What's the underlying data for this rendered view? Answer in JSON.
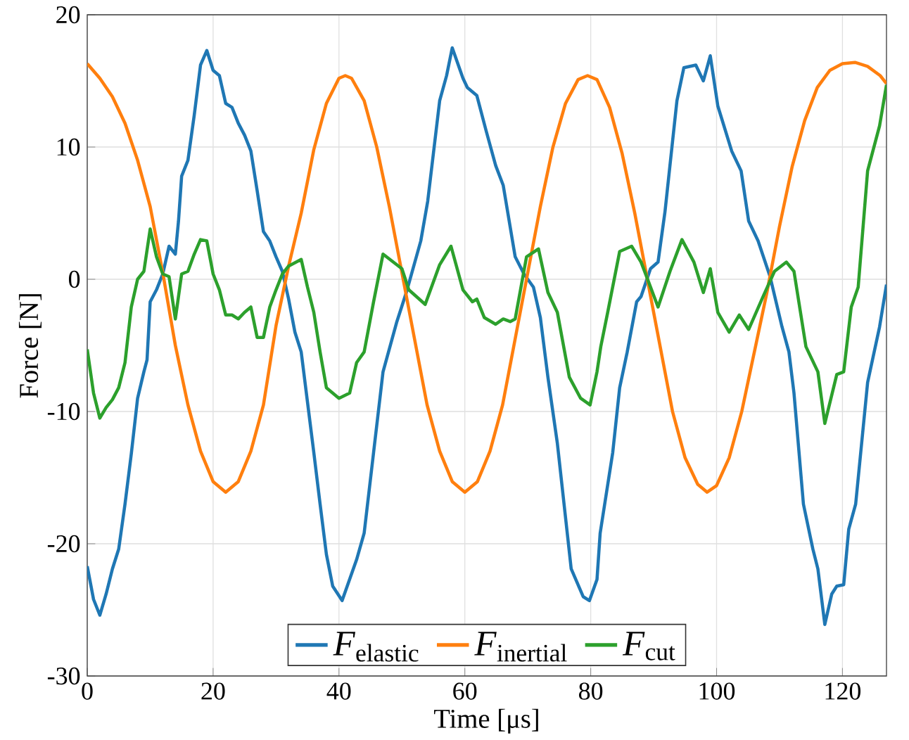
{
  "chart_data": {
    "type": "line",
    "xlabel": "Time [μs]",
    "ylabel": "Force [N]",
    "xlim": [
      0,
      127
    ],
    "ylim": [
      -30,
      20
    ],
    "xticks": [
      0,
      20,
      40,
      60,
      80,
      100,
      120
    ],
    "yticks": [
      -30,
      -20,
      -10,
      0,
      10,
      20
    ],
    "grid": true,
    "legend": "bottom",
    "series": [
      {
        "name": "*F*$_{elastic}$",
        "color": "#1f77b4",
        "x": [
          0,
          1,
          2,
          3,
          4,
          5,
          6,
          7,
          8,
          9,
          9.5,
          10,
          11,
          12,
          13,
          14,
          14.5,
          15,
          16,
          17,
          18,
          19,
          20,
          21,
          22,
          23,
          24,
          25,
          26,
          27,
          28,
          29,
          30,
          31,
          32,
          33,
          34,
          35,
          36,
          37,
          38,
          39,
          40.5,
          42.8,
          44,
          45.5,
          47,
          49.2,
          50.7,
          53,
          54.1,
          56,
          57.1,
          58,
          59.7,
          60.4,
          61.9,
          63.4,
          64.9,
          66.1,
          68,
          69.4,
          70.9,
          72,
          73.2,
          74.7,
          76.9,
          78.8,
          79.8,
          81,
          81.5,
          83.5,
          84.6,
          85.8,
          87.3,
          88,
          89.5,
          90.7,
          91.8,
          93.7,
          94.8,
          96.7,
          97.9,
          99,
          100.2,
          102.4,
          103.9,
          105.1,
          106.6,
          108.5,
          110.4,
          111.5,
          112.3,
          113.8,
          115.3,
          116.1,
          117.2,
          118.3,
          119.1,
          120.2,
          121,
          122.1,
          124,
          125.9,
          127
        ],
        "values": [
          -21.7,
          -24.2,
          -25.4,
          -23.8,
          -21.9,
          -20.4,
          -17,
          -13.2,
          -9,
          -7,
          -6.1,
          -1.7,
          -0.8,
          0.4,
          2.5,
          1.9,
          4.4,
          7.8,
          9,
          12.4,
          16.2,
          17.3,
          15.8,
          15.4,
          13.3,
          13,
          11.8,
          10.9,
          9.7,
          6.7,
          3.6,
          2.9,
          1.7,
          0.6,
          -1.5,
          -4,
          -5.5,
          -9.3,
          -13.1,
          -17,
          -20.8,
          -23.2,
          -24.3,
          -21.2,
          -19.2,
          -13.1,
          -7,
          -3.2,
          -1,
          2.9,
          5.9,
          13.5,
          15.4,
          17.5,
          15.2,
          14.5,
          13.9,
          11.2,
          8.6,
          7.1,
          1.7,
          0.4,
          -0.6,
          -2.9,
          -7.4,
          -12.4,
          -21.9,
          -24,
          -24.3,
          -22.7,
          -19.2,
          -13.1,
          -8.2,
          -5.5,
          -1.7,
          -1.3,
          0.8,
          1.3,
          5.1,
          13.5,
          16,
          16.2,
          15,
          16.9,
          13.1,
          9.7,
          8.2,
          4.4,
          2.9,
          0.2,
          -3.6,
          -5.5,
          -8.6,
          -17,
          -20.4,
          -21.9,
          -26.1,
          -23.8,
          -23.2,
          -23.1,
          -18.9,
          -17,
          -7.8,
          -3.6,
          -0.4
        ]
      },
      {
        "name": "*F*$_{inertial}$",
        "color": "#ff7f0e",
        "x": [
          0,
          2,
          4,
          6,
          8,
          10,
          12,
          14,
          16,
          18,
          20,
          22,
          24,
          26,
          28,
          30,
          32,
          34,
          36,
          38,
          40,
          41,
          42,
          44,
          46,
          48,
          50,
          52,
          54,
          56,
          58,
          60,
          62,
          64,
          66,
          68,
          70,
          72,
          74,
          76,
          78,
          79.5,
          81,
          83,
          85,
          87,
          89,
          91,
          93,
          95,
          97,
          98.5,
          100,
          102,
          104,
          106,
          108,
          110,
          112,
          114,
          116,
          118,
          120,
          122,
          124,
          126,
          127
        ],
        "values": [
          16.3,
          15.2,
          13.8,
          11.8,
          9,
          5.5,
          0.5,
          -5,
          -9.5,
          -13,
          -15.3,
          -16.1,
          -15.3,
          -13,
          -9.5,
          -3.5,
          1,
          5,
          9.8,
          13.3,
          15.2,
          15.4,
          15.2,
          13.5,
          10,
          5.5,
          0.5,
          -4.5,
          -9.5,
          -13,
          -15.3,
          -16.1,
          -15.3,
          -13,
          -9.5,
          -4.5,
          0.5,
          5.5,
          10,
          13.3,
          15.1,
          15.4,
          15.1,
          13,
          9.5,
          5,
          0,
          -5,
          -10,
          -13.5,
          -15.5,
          -16.1,
          -15.6,
          -13.5,
          -10,
          -5.5,
          -1,
          4,
          8.5,
          12,
          14.5,
          15.8,
          16.3,
          16.4,
          16.1,
          15.4,
          14.8
        ]
      },
      {
        "name": "*F*$_{cut}$",
        "color": "#2ca02c",
        "x": [
          0,
          1,
          2,
          3,
          4,
          5,
          6,
          7,
          8,
          9,
          10,
          11,
          12,
          13,
          14,
          15,
          16,
          17,
          18,
          19,
          20,
          21,
          22,
          23,
          24,
          25,
          26,
          27,
          28,
          29,
          30,
          31,
          32,
          34,
          35,
          36,
          37,
          38,
          40,
          41.7,
          42.8,
          44,
          45.5,
          47,
          50,
          51.1,
          53.7,
          56,
          57.8,
          59.7,
          61.2,
          61.9,
          63.1,
          64.9,
          66.1,
          67.2,
          68,
          69.8,
          71.7,
          73.2,
          74.7,
          76.6,
          78.4,
          79.9,
          81,
          81.6,
          82.7,
          84.6,
          86.5,
          88,
          89.2,
          90.7,
          92.6,
          94.5,
          96.4,
          97.9,
          99,
          100.2,
          102,
          103.6,
          105.1,
          107.4,
          109.2,
          111.1,
          112.3,
          114.2,
          116.1,
          117.2,
          119.1,
          120.2,
          121.4,
          122.5,
          124,
          125.9,
          127
        ],
        "values": [
          -5.3,
          -8.6,
          -10.5,
          -9.7,
          -9.1,
          -8.2,
          -6.3,
          -2.1,
          0,
          0.6,
          3.8,
          1.7,
          0.4,
          0.2,
          -3,
          0.4,
          0.6,
          1.9,
          3,
          2.9,
          0.4,
          -0.8,
          -2.7,
          -2.7,
          -3,
          -2.5,
          -2.1,
          -4.4,
          -4.4,
          -2.1,
          -0.8,
          0.4,
          1,
          1.5,
          -0.6,
          -2.5,
          -5.5,
          -8.2,
          -9,
          -8.6,
          -6.3,
          -5.5,
          -1.7,
          1.9,
          0.8,
          -0.8,
          -1.9,
          1.1,
          2.5,
          -0.8,
          -1.7,
          -1.5,
          -2.9,
          -3.4,
          -3,
          -3.2,
          -3,
          1.7,
          2.3,
          -1,
          -2.5,
          -7.4,
          -9,
          -9.5,
          -7,
          -5.1,
          -2.5,
          2.1,
          2.5,
          1.3,
          -0.2,
          -2.1,
          0.6,
          3,
          1.3,
          -1,
          0.8,
          -2.5,
          -4,
          -2.7,
          -3.8,
          -1.3,
          0.6,
          1.3,
          0.6,
          -5.1,
          -7,
          -10.9,
          -7.2,
          -7,
          -2.1,
          -0.6,
          8.2,
          11.6,
          14.7
        ]
      }
    ]
  }
}
